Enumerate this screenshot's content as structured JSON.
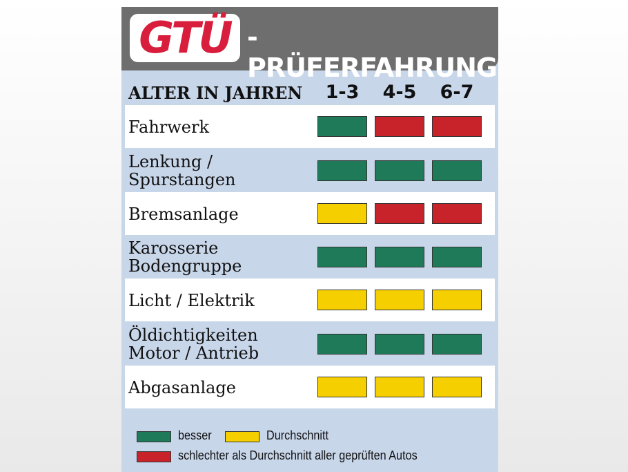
{
  "header": {
    "logo": "GTÜ",
    "title": "-PRÜFERFAHRUNG"
  },
  "table": {
    "column_header": "ALTER IN JAHREN",
    "columns": [
      "1-3",
      "4-5",
      "6-7"
    ],
    "rows": [
      {
        "label": [
          "Fahrwerk"
        ],
        "cells": [
          "#1e7a58",
          "#c8232b",
          "#c8232b"
        ]
      },
      {
        "label": [
          "Lenkung /",
          "Spurstangen"
        ],
        "cells": [
          "#1e7a58",
          "#1e7a58",
          "#1e7a58"
        ]
      },
      {
        "label": [
          "Bremsanlage"
        ],
        "cells": [
          "#f5cf00",
          "#c8232b",
          "#c8232b"
        ]
      },
      {
        "label": [
          "Karosserie",
          "Bodengruppe"
        ],
        "cells": [
          "#1e7a58",
          "#1e7a58",
          "#1e7a58"
        ]
      },
      {
        "label": [
          "Licht / Elektrik"
        ],
        "cells": [
          "#f5cf00",
          "#f5cf00",
          "#f5cf00"
        ]
      },
      {
        "label": [
          "Öldichtigkeiten",
          "Motor / Antrieb"
        ],
        "cells": [
          "#1e7a58",
          "#1e7a58",
          "#1e7a58"
        ]
      },
      {
        "label": [
          "Abgasanlage"
        ],
        "cells": [
          "#f5cf00",
          "#f5cf00",
          "#f5cf00"
        ]
      }
    ]
  },
  "legend": [
    {
      "name": "besser",
      "color": "#1e7a58"
    },
    {
      "name": "Durchschnitt",
      "color": "#f5cf00"
    },
    {
      "name": "schlechter als Durchschnitt aller geprüften Autos",
      "color": "#c8232b"
    }
  ]
}
